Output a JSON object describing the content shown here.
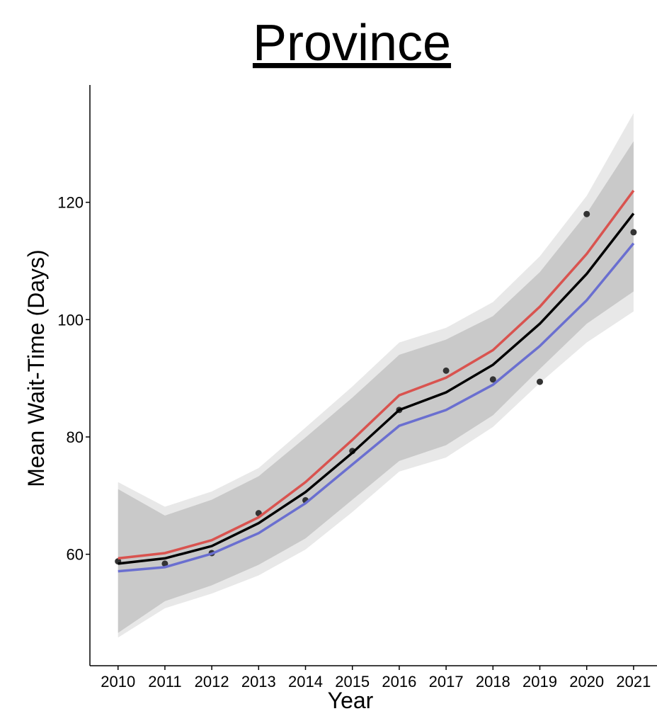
{
  "chart_data": {
    "type": "line",
    "title": "Province",
    "x_label": "Year",
    "y_label": "Mean Wait-Time (Days)",
    "x": [
      2010,
      2011,
      2012,
      2013,
      2014,
      2015,
      2016,
      2017,
      2018,
      2019,
      2020,
      2021
    ],
    "xlim": [
      2009.4,
      2021.5
    ],
    "xticks": [
      2010,
      2011,
      2012,
      2013,
      2014,
      2015,
      2016,
      2017,
      2018,
      2019,
      2020,
      2021
    ],
    "ylim": [
      41,
      140
    ],
    "yticks": [
      60,
      80,
      100,
      120
    ],
    "grid": false,
    "bands": [
      {
        "color": "#e8e8e8",
        "upper": [
          72.3,
          68.1,
          70.7,
          74.7,
          81.6,
          88.6,
          96.1,
          98.6,
          103.0,
          110.8,
          121.1,
          135.2
        ],
        "lower": [
          45.8,
          50.8,
          53.3,
          56.4,
          60.8,
          67.2,
          74.1,
          76.5,
          81.7,
          89.2,
          96.1,
          101.4
        ]
      },
      {
        "color": "#b4b4b4",
        "upper": [
          71.1,
          66.6,
          69.3,
          73.3,
          79.9,
          86.7,
          94.0,
          96.6,
          100.6,
          108.1,
          118.1,
          130.4
        ],
        "lower": [
          46.6,
          52.0,
          54.7,
          58.2,
          62.7,
          69.3,
          75.9,
          78.6,
          83.7,
          91.6,
          99.3,
          104.8
        ]
      }
    ],
    "series": [
      {
        "color": "#d9534f",
        "values": [
          59.3,
          60.2,
          62.4,
          66.3,
          72.3,
          79.5,
          87.1,
          90.1,
          94.8,
          102.2,
          111.2,
          122.0
        ]
      },
      {
        "color": "#6a6fd0",
        "values": [
          57.1,
          57.8,
          60.1,
          63.6,
          68.7,
          75.3,
          81.9,
          84.6,
          88.9,
          95.5,
          103.3,
          113.0
        ]
      },
      {
        "color": "#000000",
        "values": [
          58.4,
          59.3,
          61.4,
          65.3,
          70.6,
          77.3,
          84.6,
          87.6,
          92.3,
          99.3,
          107.8,
          118.1
        ]
      }
    ],
    "points": {
      "color": "#333333",
      "values": [
        58.8,
        58.4,
        60.2,
        67.0,
        69.2,
        77.6,
        84.6,
        91.3,
        89.8,
        89.4,
        118.0,
        114.9
      ]
    }
  }
}
